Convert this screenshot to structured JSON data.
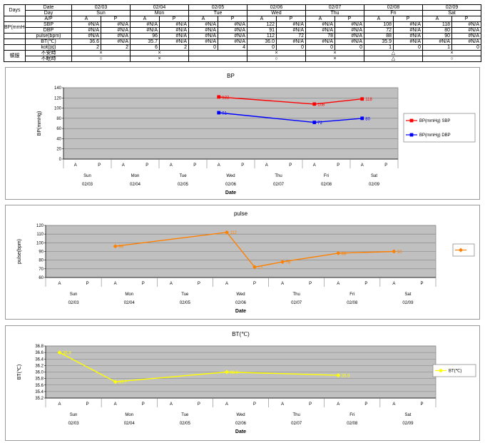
{
  "colors": {
    "sbp": "#FF0000",
    "dbp": "#0000FF",
    "pulse": "#FF8000",
    "bt": "#FFFF00",
    "plot_bg": "#C0C0C0"
  },
  "table": {
    "corner_label": "Days",
    "row_headers": {
      "date": "Date",
      "day": "Day",
      "ap": "A/P",
      "bp_group": "BP(mmHg)",
      "sbp": "SBP",
      "dbp": "DBP",
      "pulse": "pulse(bpm)",
      "bt": "BT(℃)",
      "kot": "kot(回)",
      "tonpuku_group": "頓服",
      "fuan": "不安時",
      "fumin": "不眠時"
    },
    "ap": [
      "A",
      "P"
    ],
    "dates": [
      "02/03",
      "02/04",
      "02/05",
      "02/06",
      "02/07",
      "02/08",
      "02/09"
    ],
    "days": [
      "Sun",
      "Mon",
      "Tue",
      "Wed",
      "Thu",
      "Fri",
      "Sat"
    ],
    "sbp": [
      "#N/A",
      "#N/A",
      "#N/A",
      "#N/A",
      "#N/A",
      "#N/A",
      "122",
      "#N/A",
      "#N/A",
      "#N/A",
      "108",
      "#N/A",
      "118",
      "#N/A"
    ],
    "dbp": [
      "#N/A",
      "#N/A",
      "#N/A",
      "#N/A",
      "#N/A",
      "#N/A",
      "91",
      "#N/A",
      "#N/A",
      "#N/A",
      "72",
      "#N/A",
      "80",
      "#N/A"
    ],
    "pulse": [
      "#N/A",
      "#N/A",
      "96",
      "#N/A",
      "#N/A",
      "#N/A",
      "112",
      "72",
      "78",
      "#N/A",
      "88",
      "#N/A",
      "90",
      "#N/A"
    ],
    "bt": [
      "36.6",
      "#N/A",
      "35.7",
      "#N/A",
      "#N/A",
      "#N/A",
      "36.0",
      "#N/A",
      "#N/A",
      "#N/A",
      "35.9",
      "#N/A",
      "#N/A",
      "#N/A"
    ],
    "kot": [
      "2",
      "2",
      "6",
      "2",
      "0",
      "4",
      "0",
      "0",
      "0",
      "0",
      "1",
      "0",
      "1",
      "0"
    ],
    "fuan": [
      "×",
      "×",
      "",
      "×",
      "×",
      "△",
      "×"
    ],
    "fumin": [
      "○",
      "×",
      "",
      "○",
      "×",
      "△",
      "○"
    ]
  },
  "chart_data": [
    {
      "type": "line",
      "title": "BP",
      "xlabel": "Date",
      "ylabel": "BP(mmHg)",
      "ylim": [
        0,
        140
      ],
      "yticks": [
        0,
        20,
        40,
        60,
        80,
        100,
        120,
        140
      ],
      "ytick_labels": [
        "0",
        "20",
        "40",
        "60",
        "80",
        "100",
        "120",
        "140"
      ],
      "grid": true,
      "legend_position": "right",
      "x_axis": {
        "ap": [
          "A",
          "P"
        ],
        "days": [
          "Sun",
          "Mon",
          "Tue",
          "Wed",
          "Thu",
          "Fri",
          "Sat"
        ],
        "dates": [
          "02/03",
          "02/04",
          "02/05",
          "02/06",
          "02/07",
          "02/08",
          "02/09"
        ],
        "slots": 14
      },
      "series": [
        {
          "name": "BP(mmHg) SBP",
          "color": "#FF0000",
          "marker": "square",
          "points": [
            {
              "x": "02/06 A",
              "slot": 6,
              "value": 122,
              "label": "122"
            },
            {
              "x": "02/08 A",
              "slot": 10,
              "value": 108,
              "label": "108"
            },
            {
              "x": "02/09 A",
              "slot": 12,
              "value": 118,
              "label": "118"
            }
          ]
        },
        {
          "name": "BP(mmHg) DBP",
          "color": "#0000FF",
          "marker": "square",
          "points": [
            {
              "x": "02/06 A",
              "slot": 6,
              "value": 91,
              "label": "91"
            },
            {
              "x": "02/08 A",
              "slot": 10,
              "value": 72,
              "label": "72"
            },
            {
              "x": "02/09 A",
              "slot": 12,
              "value": 80,
              "label": "80"
            }
          ]
        }
      ]
    },
    {
      "type": "line",
      "title": "pulse",
      "xlabel": "Date",
      "ylabel": "pulse(bpm)",
      "ylim": [
        60,
        120
      ],
      "yticks": [
        60,
        70,
        80,
        90,
        100,
        110,
        120
      ],
      "ytick_labels": [
        "60",
        "70",
        "80",
        "90",
        "100",
        "110",
        "120"
      ],
      "grid": true,
      "legend_position": "right",
      "x_axis": {
        "ap": [
          "A",
          "P"
        ],
        "days": [
          "Sun",
          "Mon",
          "Tue",
          "Wed",
          "Thu",
          "Fri",
          "Sat"
        ],
        "dates": [
          "02/03",
          "02/04",
          "02/05",
          "02/06",
          "02/07",
          "02/08",
          "02/09"
        ],
        "slots": 14
      },
      "series": [
        {
          "name": "",
          "color": "#FF8000",
          "marker": "diamond",
          "points": [
            {
              "x": "02/04 A",
              "slot": 2,
              "value": 96,
              "label": "96"
            },
            {
              "x": "02/06 A",
              "slot": 6,
              "value": 112,
              "label": "112"
            },
            {
              "x": "02/06 P",
              "slot": 7,
              "value": 72,
              "label": "72"
            },
            {
              "x": "02/07 A",
              "slot": 8,
              "value": 78,
              "label": "78"
            },
            {
              "x": "02/08 A",
              "slot": 10,
              "value": 88,
              "label": "88"
            },
            {
              "x": "02/09 A",
              "slot": 12,
              "value": 90,
              "label": "90"
            }
          ]
        }
      ]
    },
    {
      "type": "line",
      "title": "BT(℃)",
      "xlabel": "Date",
      "ylabel": "BT(℃)",
      "ylim": [
        35.2,
        36.8
      ],
      "yticks": [
        35.2,
        35.4,
        35.6,
        35.8,
        36.0,
        36.2,
        36.4,
        36.6,
        36.8
      ],
      "ytick_labels": [
        "35.2",
        "35.4",
        "35.6",
        "35.8",
        "36.0",
        "36.2",
        "36.4",
        "36.6",
        "36.8"
      ],
      "grid": true,
      "legend_position": "right",
      "x_axis": {
        "ap": [
          "A",
          "P"
        ],
        "days": [
          "Sun",
          "Mon",
          "Tue",
          "Wed",
          "Thu",
          "Fri",
          "Sat"
        ],
        "dates": [
          "02/03",
          "02/04",
          "02/05",
          "02/06",
          "02/07",
          "02/08",
          "02/09"
        ],
        "slots": 14
      },
      "series": [
        {
          "name": "BT(℃)",
          "color": "#FFFF00",
          "marker": "diamond",
          "points": [
            {
              "x": "02/03 A",
              "slot": 0,
              "value": 36.6,
              "label": "36.6"
            },
            {
              "x": "02/04 A",
              "slot": 2,
              "value": 35.7,
              "label": "35.7"
            },
            {
              "x": "02/06 A",
              "slot": 6,
              "value": 36.0,
              "label": "36.0"
            },
            {
              "x": "02/08 A",
              "slot": 10,
              "value": 35.9,
              "label": "35.9"
            }
          ]
        }
      ]
    }
  ]
}
